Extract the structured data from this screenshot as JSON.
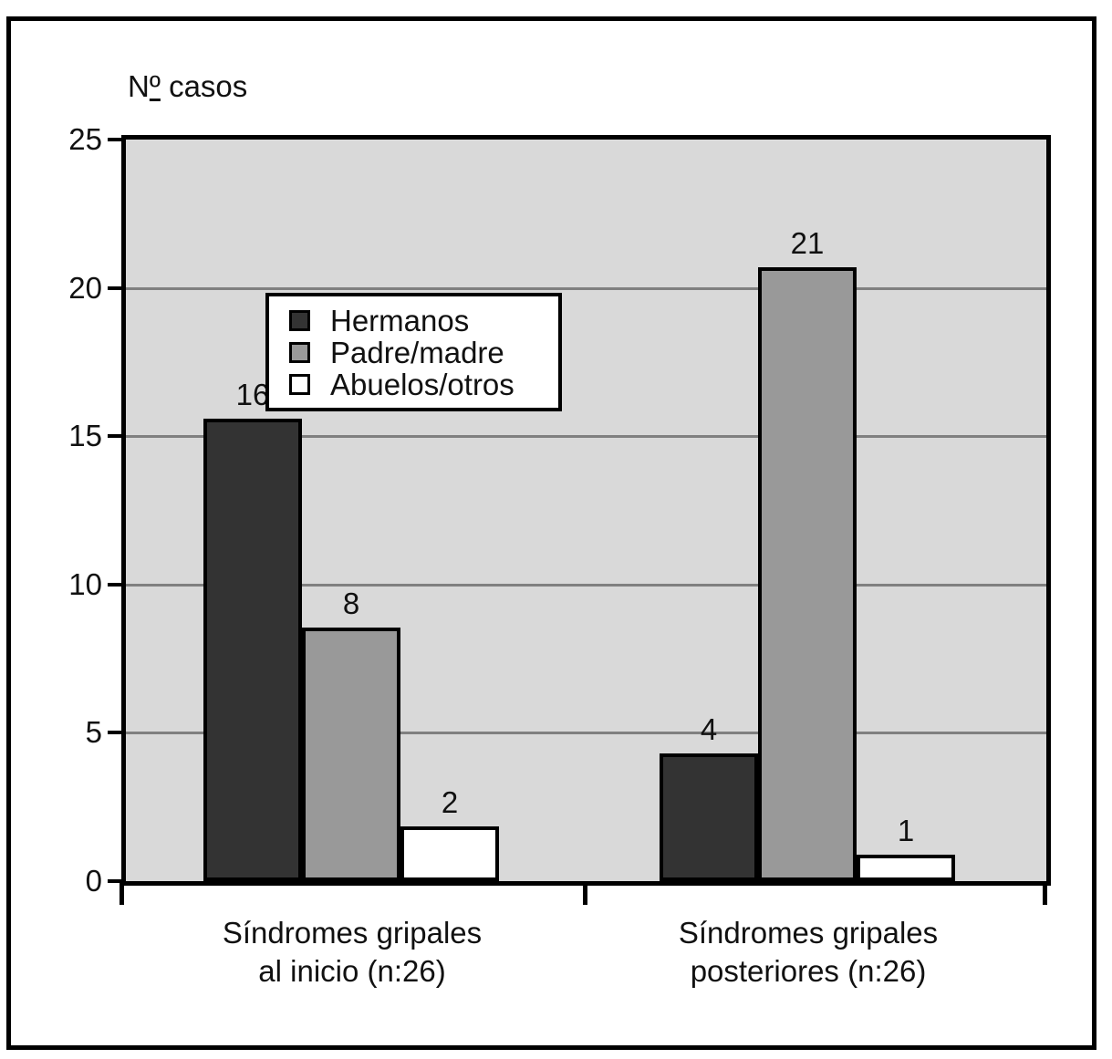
{
  "figure": {
    "title_pre": "N",
    "title_ordinal": "º",
    "title_post": " casos"
  },
  "chart_data": {
    "type": "bar",
    "title": "Nº casos",
    "ylabel": "Nº casos",
    "xlabel": "",
    "categories": [
      "Síndromes gripales al inicio (n:26)",
      "Síndromes gripales posteriores (n:26)"
    ],
    "category_lines": [
      [
        "Síndromes gripales",
        "al inicio (n:26)"
      ],
      [
        "Síndromes gripales",
        "posteriores (n:26)"
      ]
    ],
    "series": [
      {
        "name": "Hermanos",
        "color": "#333333",
        "values": [
          16,
          4
        ],
        "drawn_heights": [
          15.6,
          4.3
        ]
      },
      {
        "name": "Padre/madre",
        "color": "#999999",
        "values": [
          8,
          21
        ],
        "drawn_heights": [
          8.55,
          20.7
        ]
      },
      {
        "name": "Abuelos/otros",
        "color": "#ffffff",
        "values": [
          2,
          1
        ],
        "drawn_heights": [
          1.85,
          0.9
        ]
      }
    ],
    "ylim": [
      0,
      25
    ],
    "y_ticks": [
      25,
      20,
      15,
      10,
      5,
      0
    ],
    "grid": true,
    "gridline_values": [
      5,
      10,
      15,
      20
    ],
    "legend_position": "top-left-inside",
    "data_labels": true,
    "colors": {
      "plot_background": "#d9d9d9",
      "gridline": "#808080",
      "axis": "#000000",
      "text": "#111111"
    }
  }
}
